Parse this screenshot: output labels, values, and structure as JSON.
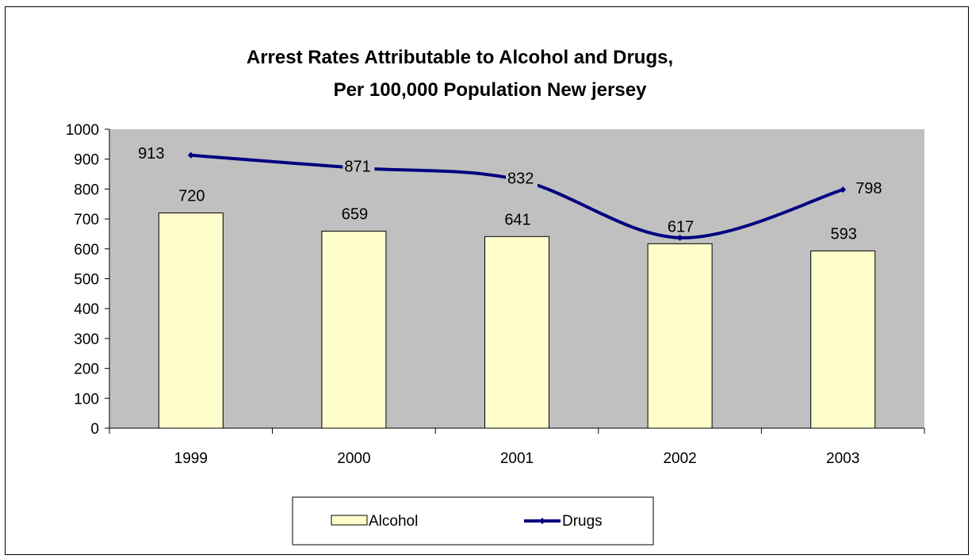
{
  "chart_data": {
    "type": "bar",
    "title_lines": [
      "Arrest Rates Attributable to Alcohol and Drugs,",
      "Per 100,000 Population  New jersey"
    ],
    "xlabel": "",
    "ylabel": "",
    "categories": [
      "1999",
      "2000",
      "2001",
      "2002",
      "2003"
    ],
    "ylim": [
      0,
      1000
    ],
    "yticks": [
      0,
      100,
      200,
      300,
      400,
      500,
      600,
      700,
      800,
      900,
      1000
    ],
    "yticklabels": [
      "0",
      "100",
      "200",
      "300",
      "400",
      "500",
      "600",
      "700",
      "800",
      "900",
      "1000"
    ],
    "grid": false,
    "plot_background": "#c0c0c0",
    "legend_position": "bottom",
    "series": [
      {
        "name": "Alcohol",
        "kind": "bar",
        "values": [
          720,
          659,
          641,
          617,
          593
        ],
        "labels": [
          "720",
          "659",
          "641",
          "617",
          "593"
        ],
        "color": "#ffffcc"
      },
      {
        "name": "Drugs",
        "kind": "line",
        "smooth": true,
        "values": [
          913,
          871,
          832,
          637,
          798
        ],
        "labels": [
          "913",
          "871",
          "832",
          "",
          "798"
        ],
        "color": "#000080"
      }
    ]
  }
}
